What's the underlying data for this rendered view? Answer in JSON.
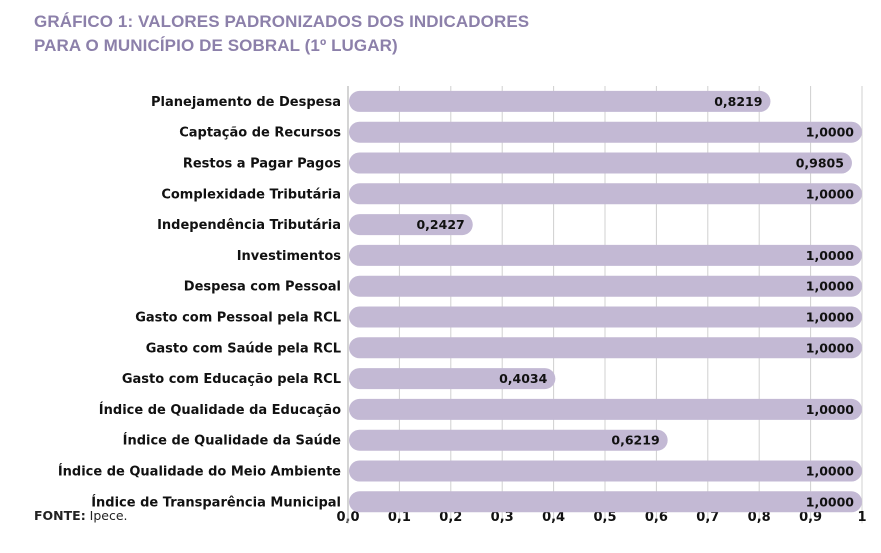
{
  "chart_data": {
    "type": "bar",
    "orientation": "horizontal",
    "title": [
      "GRÁFICO 1: VALORES PADRONIZADOS DOS INDICADORES",
      "PARA O MUNICÍPIO DE SOBRAL (1º LUGAR)"
    ],
    "categories": [
      "Planejamento de Despesa",
      "Captação de Recursos",
      "Restos a Pagar Pagos",
      "Complexidade Tributária",
      "Independência Tributária",
      "Investimentos",
      "Despesa com Pessoal",
      "Gasto com Pessoal pela RCL",
      "Gasto com Saúde pela RCL",
      "Gasto com Educação pela RCL",
      "Índice de Qualidade da Educação",
      "Índice de Qualidade da Saúde",
      "Índice de Qualidade do Meio Ambiente",
      "Índice de Transparência Municipal"
    ],
    "values": [
      0.8219,
      1.0,
      0.9805,
      1.0,
      0.2427,
      1.0,
      1.0,
      1.0,
      1.0,
      0.4034,
      1.0,
      0.6219,
      1.0,
      1.0
    ],
    "data_labels": [
      "0,8219",
      "1,0000",
      "0,9805",
      "1,0000",
      "0,2427",
      "1,0000",
      "1,0000",
      "1,0000",
      "1,0000",
      "0,4034",
      "1,0000",
      "0,6219",
      "1,0000",
      "1,0000"
    ],
    "xlim": [
      0,
      1
    ],
    "xticks": [
      "0,0",
      "0,1",
      "0,2",
      "0,3",
      "0,4",
      "0,5",
      "0,6",
      "0,7",
      "0,8",
      "0,9",
      "1"
    ],
    "grid": "vertical",
    "colors": {
      "bar": "#c3b9d4",
      "title": "#8c80aa",
      "grid": "#d0d0d0"
    }
  },
  "source": {
    "label": "FONTE:",
    "text": " Ipece."
  }
}
